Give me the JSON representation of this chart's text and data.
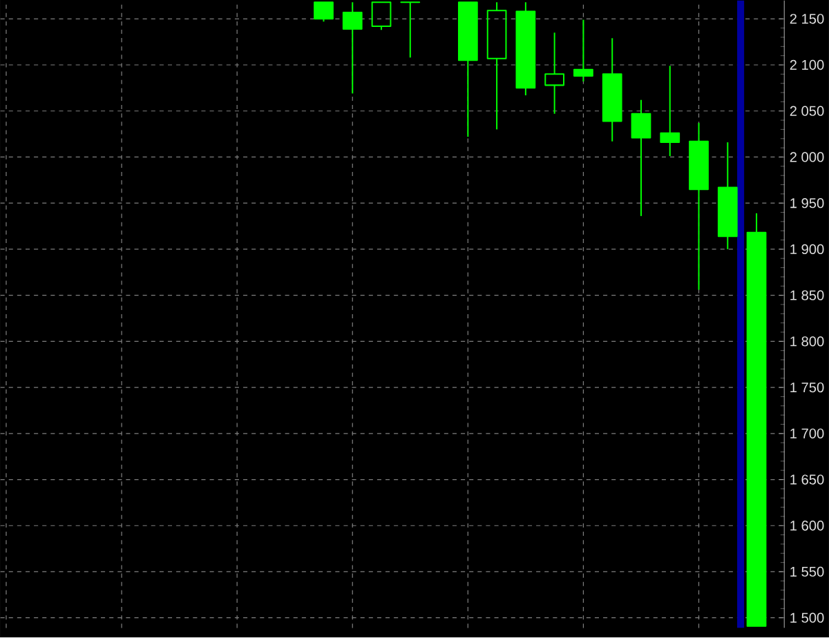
{
  "chart_data": {
    "type": "candlestick",
    "categories": [
      null,
      null,
      null,
      null,
      null,
      null,
      null,
      null,
      null,
      null,
      null,
      null,
      null,
      null,
      null,
      null,
      null,
      null,
      null,
      null,
      null,
      null,
      null,
      null,
      null,
      null,
      null
    ],
    "ohlc": [
      null,
      null,
      null,
      null,
      null,
      null,
      null,
      null,
      null,
      null,
      null,
      [
        2168,
        2168,
        2147,
        2150
      ],
      [
        2157,
        2168,
        2069,
        2139
      ],
      [
        2142,
        2168,
        2138,
        2168
      ],
      [
        2168,
        2168,
        2108,
        2168
      ],
      null,
      [
        2168,
        2168,
        2022,
        2105
      ],
      [
        2107,
        2168,
        2030,
        2159
      ],
      [
        2158,
        2168,
        2067,
        2075
      ],
      [
        2078,
        2135,
        2047,
        2090
      ],
      [
        2095,
        2149,
        2082,
        2088
      ],
      [
        2090,
        2129,
        2017,
        2039
      ],
      [
        2047,
        2062,
        1936,
        2021
      ],
      [
        2026,
        2099,
        2001,
        2016
      ],
      [
        2017,
        2037,
        1856,
        1965
      ],
      [
        1967,
        2016,
        1900,
        1914
      ],
      [
        1918,
        1939,
        1491,
        1491
      ]
    ],
    "color": "#00ff00",
    "ylim": [
      1489,
      2170
    ],
    "yticks": [
      {
        "value": 1500,
        "label": "1 500"
      },
      {
        "value": 1550,
        "label": "1 550"
      },
      {
        "value": 1600,
        "label": "1 600"
      },
      {
        "value": 1650,
        "label": "1 650"
      },
      {
        "value": 1700,
        "label": "1 700"
      },
      {
        "value": 1750,
        "label": "1 750"
      },
      {
        "value": 1800,
        "label": "1 800"
      },
      {
        "value": 1850,
        "label": "1 850"
      },
      {
        "value": 1900,
        "label": "1 900"
      },
      {
        "value": 1950,
        "label": "1 950"
      },
      {
        "value": 2000,
        "label": "2 000"
      },
      {
        "value": 2050,
        "label": "2 050"
      },
      {
        "value": 2100,
        "label": "2 100"
      },
      {
        "value": 2150,
        "label": "2 150"
      }
    ],
    "grid": true,
    "tick_labels": "y"
  }
}
